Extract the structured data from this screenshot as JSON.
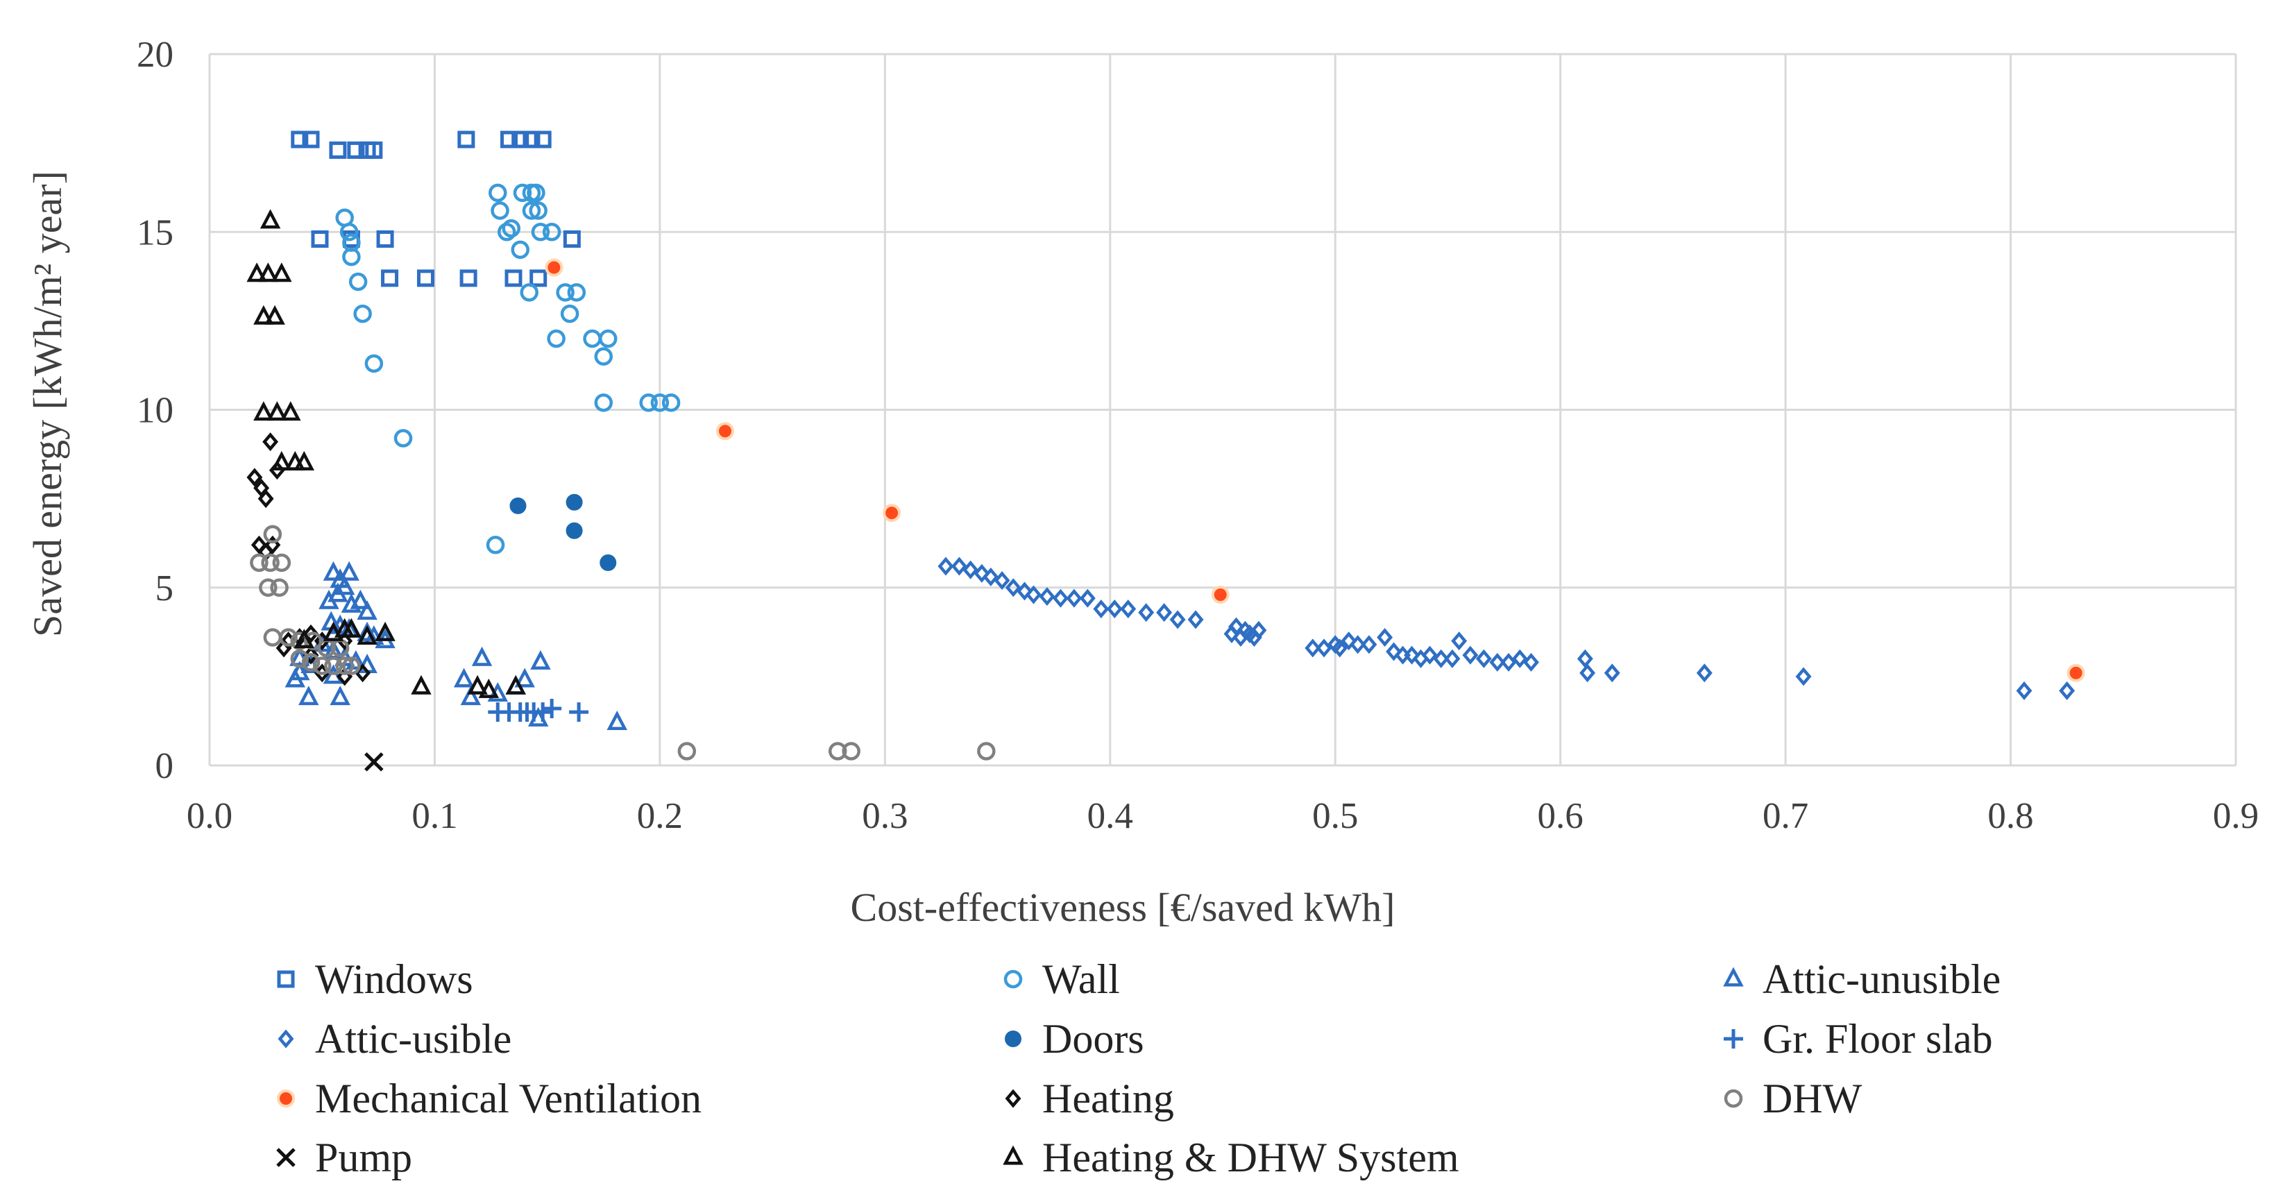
{
  "chart_data": {
    "type": "scatter",
    "title": "",
    "xlabel": "Cost-effectiveness [€/saved kWh]",
    "ylabel": "Saved energy [kWh/m² year]",
    "xlim": [
      0,
      0.9
    ],
    "ylim": [
      0,
      20
    ],
    "xticks": [
      0,
      0.1,
      0.2,
      0.3,
      0.4,
      0.5,
      0.6,
      0.7,
      0.8,
      0.9
    ],
    "xtick_labels": [
      "0.0",
      "0.1",
      "0.2",
      "0.3",
      "0.4",
      "0.5",
      "0.6",
      "0.7",
      "0.8",
      "0.9"
    ],
    "yticks": [
      0,
      5,
      10,
      15,
      20
    ],
    "ytick_labels": [
      "0",
      "5",
      "10",
      "15",
      "20"
    ],
    "grid": true,
    "legend_position": "bottom",
    "series": [
      {
        "name": "Windows",
        "marker": "square-open",
        "color": "#2f6fc4",
        "points": [
          [
            0.04,
            17.6
          ],
          [
            0.045,
            17.6
          ],
          [
            0.057,
            17.3
          ],
          [
            0.065,
            17.3
          ],
          [
            0.07,
            17.3
          ],
          [
            0.073,
            17.3
          ],
          [
            0.114,
            17.6
          ],
          [
            0.133,
            17.6
          ],
          [
            0.138,
            17.6
          ],
          [
            0.143,
            17.6
          ],
          [
            0.148,
            17.6
          ],
          [
            0.049,
            14.8
          ],
          [
            0.063,
            14.8
          ],
          [
            0.078,
            14.8
          ],
          [
            0.161,
            14.8
          ],
          [
            0.08,
            13.7
          ],
          [
            0.096,
            13.7
          ],
          [
            0.115,
            13.7
          ],
          [
            0.135,
            13.7
          ],
          [
            0.146,
            13.7
          ]
        ]
      },
      {
        "name": "Wall",
        "marker": "circle-open",
        "color": "#3a9ad9",
        "points": [
          [
            0.06,
            15.4
          ],
          [
            0.062,
            15.0
          ],
          [
            0.063,
            14.7
          ],
          [
            0.063,
            14.3
          ],
          [
            0.066,
            13.6
          ],
          [
            0.068,
            12.7
          ],
          [
            0.073,
            11.3
          ],
          [
            0.086,
            9.2
          ],
          [
            0.128,
            16.1
          ],
          [
            0.129,
            15.6
          ],
          [
            0.132,
            15.0
          ],
          [
            0.134,
            15.1
          ],
          [
            0.138,
            14.5
          ],
          [
            0.139,
            16.1
          ],
          [
            0.143,
            16.1
          ],
          [
            0.145,
            16.1
          ],
          [
            0.143,
            15.6
          ],
          [
            0.146,
            15.6
          ],
          [
            0.147,
            15.0
          ],
          [
            0.152,
            15.0
          ],
          [
            0.142,
            13.3
          ],
          [
            0.158,
            13.3
          ],
          [
            0.16,
            12.7
          ],
          [
            0.163,
            13.3
          ],
          [
            0.154,
            12.0
          ],
          [
            0.17,
            12.0
          ],
          [
            0.175,
            11.5
          ],
          [
            0.177,
            12.0
          ],
          [
            0.175,
            10.2
          ],
          [
            0.195,
            10.2
          ],
          [
            0.2,
            10.2
          ],
          [
            0.205,
            10.2
          ],
          [
            0.127,
            6.2
          ]
        ]
      },
      {
        "name": "Attic-unusible",
        "marker": "triangle-open",
        "color": "#2f6fc4",
        "points": [
          [
            0.055,
            5.4
          ],
          [
            0.058,
            5.2
          ],
          [
            0.06,
            5.0
          ],
          [
            0.062,
            5.4
          ],
          [
            0.057,
            4.8
          ],
          [
            0.053,
            4.6
          ],
          [
            0.063,
            4.5
          ],
          [
            0.067,
            4.6
          ],
          [
            0.07,
            4.3
          ],
          [
            0.054,
            4.0
          ],
          [
            0.058,
            3.9
          ],
          [
            0.062,
            3.8
          ],
          [
            0.07,
            3.7
          ],
          [
            0.073,
            3.6
          ],
          [
            0.078,
            3.5
          ],
          [
            0.05,
            3.4
          ],
          [
            0.055,
            3.2
          ],
          [
            0.06,
            3.0
          ],
          [
            0.065,
            2.9
          ],
          [
            0.045,
            2.8
          ],
          [
            0.04,
            2.6
          ],
          [
            0.038,
            2.4
          ],
          [
            0.04,
            3.0
          ],
          [
            0.055,
            2.5
          ],
          [
            0.044,
            1.9
          ],
          [
            0.058,
            1.9
          ],
          [
            0.07,
            2.8
          ],
          [
            0.113,
            2.4
          ],
          [
            0.121,
            3.0
          ],
          [
            0.116,
            1.9
          ],
          [
            0.128,
            2.0
          ],
          [
            0.136,
            2.2
          ],
          [
            0.14,
            2.4
          ],
          [
            0.147,
            2.9
          ],
          [
            0.146,
            1.3
          ],
          [
            0.181,
            1.2
          ]
        ]
      },
      {
        "name": "Attic-usible",
        "marker": "diamond-open",
        "color": "#2f6fc4",
        "points": [
          [
            0.327,
            5.6
          ],
          [
            0.333,
            5.6
          ],
          [
            0.338,
            5.5
          ],
          [
            0.343,
            5.4
          ],
          [
            0.347,
            5.3
          ],
          [
            0.352,
            5.2
          ],
          [
            0.357,
            5.0
          ],
          [
            0.362,
            4.9
          ],
          [
            0.366,
            4.8
          ],
          [
            0.372,
            4.75
          ],
          [
            0.378,
            4.7
          ],
          [
            0.384,
            4.7
          ],
          [
            0.39,
            4.7
          ],
          [
            0.396,
            4.4
          ],
          [
            0.402,
            4.4
          ],
          [
            0.408,
            4.4
          ],
          [
            0.416,
            4.3
          ],
          [
            0.424,
            4.3
          ],
          [
            0.43,
            4.1
          ],
          [
            0.438,
            4.1
          ],
          [
            0.454,
            3.7
          ],
          [
            0.456,
            3.9
          ],
          [
            0.458,
            3.6
          ],
          [
            0.46,
            3.8
          ],
          [
            0.462,
            3.7
          ],
          [
            0.464,
            3.6
          ],
          [
            0.466,
            3.8
          ],
          [
            0.49,
            3.3
          ],
          [
            0.495,
            3.3
          ],
          [
            0.5,
            3.4
          ],
          [
            0.502,
            3.3
          ],
          [
            0.506,
            3.5
          ],
          [
            0.51,
            3.4
          ],
          [
            0.515,
            3.4
          ],
          [
            0.522,
            3.6
          ],
          [
            0.526,
            3.2
          ],
          [
            0.53,
            3.1
          ],
          [
            0.534,
            3.1
          ],
          [
            0.538,
            3.0
          ],
          [
            0.542,
            3.1
          ],
          [
            0.547,
            3.0
          ],
          [
            0.552,
            3.0
          ],
          [
            0.555,
            3.5
          ],
          [
            0.56,
            3.1
          ],
          [
            0.566,
            3.0
          ],
          [
            0.572,
            2.9
          ],
          [
            0.577,
            2.9
          ],
          [
            0.582,
            3.0
          ],
          [
            0.587,
            2.9
          ],
          [
            0.611,
            3.0
          ],
          [
            0.612,
            2.6
          ],
          [
            0.623,
            2.6
          ],
          [
            0.664,
            2.6
          ],
          [
            0.708,
            2.5
          ],
          [
            0.806,
            2.1
          ],
          [
            0.825,
            2.1
          ]
        ]
      },
      {
        "name": "Doors",
        "marker": "circle-filled",
        "color": "#1b68b0",
        "points": [
          [
            0.137,
            7.3
          ],
          [
            0.162,
            7.4
          ],
          [
            0.162,
            6.6
          ],
          [
            0.177,
            5.7
          ]
        ]
      },
      {
        "name": "Gr. Floor slab",
        "marker": "plus",
        "color": "#2f6fc4",
        "points": [
          [
            0.128,
            1.5
          ],
          [
            0.133,
            1.5
          ],
          [
            0.138,
            1.5
          ],
          [
            0.141,
            1.5
          ],
          [
            0.144,
            1.5
          ],
          [
            0.148,
            1.5
          ],
          [
            0.152,
            1.6
          ],
          [
            0.164,
            1.5
          ]
        ]
      },
      {
        "name": "Mechanical Ventilation",
        "marker": "circle-filled",
        "color": "#ff4a1c",
        "points": [
          [
            0.153,
            14.0
          ],
          [
            0.229,
            9.4
          ],
          [
            0.303,
            7.1
          ],
          [
            0.449,
            4.8
          ],
          [
            0.829,
            2.6
          ]
        ]
      },
      {
        "name": "Heating",
        "marker": "diamond-open",
        "color": "#111111",
        "points": [
          [
            0.02,
            8.1
          ],
          [
            0.023,
            7.8
          ],
          [
            0.025,
            7.5
          ],
          [
            0.027,
            9.1
          ],
          [
            0.03,
            8.3
          ],
          [
            0.022,
            6.2
          ],
          [
            0.028,
            6.2
          ],
          [
            0.025,
            6.0
          ],
          [
            0.035,
            3.5
          ],
          [
            0.04,
            3.6
          ],
          [
            0.045,
            3.7
          ],
          [
            0.05,
            3.5
          ],
          [
            0.06,
            3.5
          ],
          [
            0.033,
            3.3
          ],
          [
            0.045,
            3.1
          ],
          [
            0.05,
            2.6
          ],
          [
            0.06,
            2.5
          ],
          [
            0.068,
            2.6
          ]
        ]
      },
      {
        "name": "DHW",
        "marker": "circle-open",
        "color": "#808080",
        "points": [
          [
            0.028,
            6.5
          ],
          [
            0.022,
            5.7
          ],
          [
            0.027,
            5.7
          ],
          [
            0.032,
            5.7
          ],
          [
            0.026,
            5.0
          ],
          [
            0.031,
            5.0
          ],
          [
            0.028,
            3.6
          ],
          [
            0.035,
            3.6
          ],
          [
            0.04,
            3.5
          ],
          [
            0.046,
            3.5
          ],
          [
            0.052,
            3.3
          ],
          [
            0.058,
            3.3
          ],
          [
            0.04,
            3.0
          ],
          [
            0.045,
            2.9
          ],
          [
            0.05,
            2.8
          ],
          [
            0.055,
            2.8
          ],
          [
            0.06,
            2.8
          ],
          [
            0.063,
            2.8
          ],
          [
            0.212,
            0.4
          ],
          [
            0.279,
            0.4
          ],
          [
            0.285,
            0.4
          ],
          [
            0.345,
            0.4
          ]
        ]
      },
      {
        "name": "Pump",
        "marker": "x",
        "color": "#111111",
        "points": [
          [
            0.073,
            0.1
          ]
        ]
      },
      {
        "name": "Heating & DHW System",
        "marker": "triangle-open",
        "color": "#111111",
        "points": [
          [
            0.027,
            15.3
          ],
          [
            0.021,
            13.8
          ],
          [
            0.026,
            13.8
          ],
          [
            0.032,
            13.8
          ],
          [
            0.024,
            12.6
          ],
          [
            0.029,
            12.6
          ],
          [
            0.024,
            9.9
          ],
          [
            0.03,
            9.9
          ],
          [
            0.036,
            9.9
          ],
          [
            0.032,
            8.5
          ],
          [
            0.038,
            8.5
          ],
          [
            0.042,
            8.5
          ],
          [
            0.042,
            3.5
          ],
          [
            0.055,
            3.7
          ],
          [
            0.06,
            3.8
          ],
          [
            0.063,
            3.8
          ],
          [
            0.07,
            3.6
          ],
          [
            0.078,
            3.7
          ],
          [
            0.094,
            2.2
          ],
          [
            0.119,
            2.2
          ],
          [
            0.124,
            2.1
          ],
          [
            0.136,
            2.2
          ]
        ]
      }
    ]
  }
}
